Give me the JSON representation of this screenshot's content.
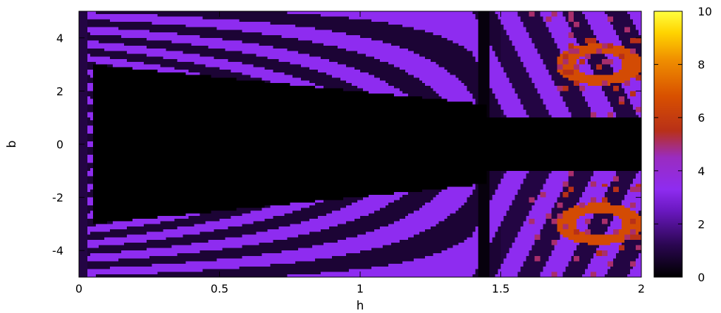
{
  "chart_data": {
    "type": "heatmap",
    "title": "",
    "xlabel": "h",
    "ylabel": "b",
    "xlim": [
      0,
      2
    ],
    "ylim": [
      -5,
      5
    ],
    "x_ticks": [
      "0",
      "0.5",
      "1",
      "1.5",
      "2"
    ],
    "y_ticks": [
      "4",
      "2",
      "0",
      "-2",
      "-4"
    ],
    "colorbar": {
      "range": [
        0,
        10
      ],
      "ticks": [
        "10",
        "8",
        "6",
        "4",
        "2",
        "0"
      ],
      "colormap": [
        "#000000",
        "#4a0f8a",
        "#8a2be2",
        "#a02fd0",
        "#c0402a",
        "#e07800",
        "#ffd400",
        "#ffff80"
      ]
    },
    "description_values": {
      "central_band": 0,
      "stripes_peak": 3,
      "hotspot_peak": 7
    }
  }
}
